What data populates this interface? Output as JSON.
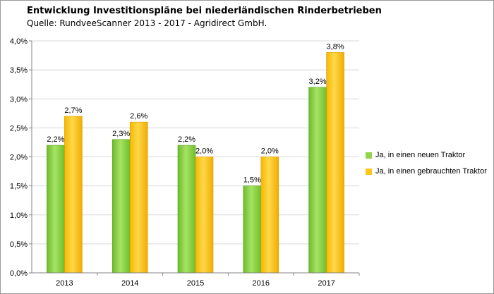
{
  "header": {
    "title": "Entwicklung Investitionspläne bei niederländischen Rinderbetrieben",
    "subtitle": "Quelle: RundveeScanner 2013 - 2017 - Agridirect GmbH."
  },
  "colors": {
    "series_new": "#8fd44a",
    "series_used": "#ffc61a",
    "grid": "#d9d9d9",
    "axis": "#868686"
  },
  "chart_data": {
    "type": "bar",
    "categories": [
      "2013",
      "2014",
      "2015",
      "2016",
      "2017"
    ],
    "series": [
      {
        "name": "Ja, in einen neuen Traktor",
        "values": [
          2.2,
          2.3,
          2.2,
          1.5,
          3.2
        ],
        "labels": [
          "2,2%",
          "2,3%",
          "2,2%",
          "1,5%",
          "3,2%"
        ]
      },
      {
        "name": "Ja, in einen gebrauchten Traktor",
        "values": [
          2.7,
          2.6,
          2.0,
          2.0,
          3.8
        ],
        "labels": [
          "2,7%",
          "2,6%",
          "2,0%",
          "2,0%",
          "3,8%"
        ]
      }
    ],
    "ylim": [
      0,
      4.0
    ],
    "yticks": [
      "0,0%",
      "0,5%",
      "1,0%",
      "1,5%",
      "2,0%",
      "2,5%",
      "3,0%",
      "3,5%",
      "4,0%"
    ],
    "grid": true,
    "legend_position": "right"
  }
}
